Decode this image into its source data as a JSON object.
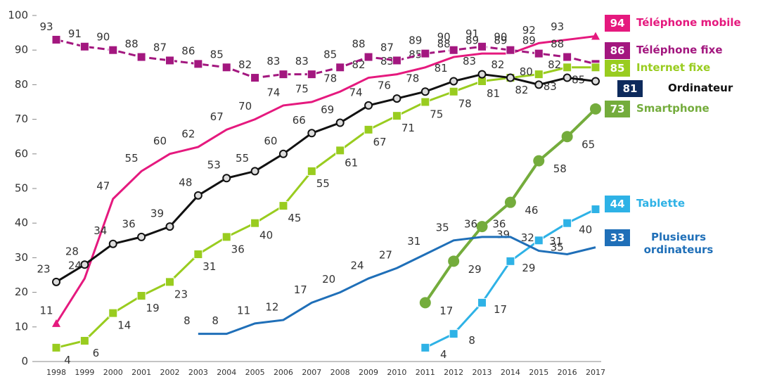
{
  "chart_data": {
    "type": "line",
    "x": [
      "1998",
      "1999",
      "2000",
      "2001",
      "2002",
      "2003",
      "2004",
      "2005",
      "2006",
      "2007",
      "2008",
      "2009",
      "2010",
      "2011",
      "2012",
      "2013",
      "2014",
      "2015",
      "2016",
      "2017"
    ],
    "ylim": [
      0,
      100
    ],
    "yticks": [
      0,
      10,
      20,
      30,
      40,
      50,
      60,
      70,
      80,
      90,
      100
    ],
    "series": [
      {
        "name": "Téléphone mobile",
        "color": "#e5197e",
        "marker": "triangle",
        "values": [
          11,
          24,
          47,
          55,
          60,
          62,
          67,
          70,
          74,
          75,
          78,
          82,
          83,
          85,
          88,
          89,
          89,
          92,
          93,
          94
        ]
      },
      {
        "name": "Téléphone fixe",
        "color": "#a3177f",
        "marker": "square",
        "dashed": true,
        "values": [
          93,
          91,
          90,
          88,
          87,
          86,
          85,
          82,
          83,
          83,
          85,
          88,
          87,
          89,
          90,
          91,
          90,
          89,
          88,
          86
        ]
      },
      {
        "name": "Internet fixe",
        "color": "#99cc1f",
        "marker": "square",
        "values": [
          4,
          6,
          14,
          19,
          23,
          31,
          36,
          40,
          45,
          55,
          61,
          67,
          71,
          75,
          78,
          81,
          82,
          83,
          85,
          85
        ]
      },
      {
        "name": "Ordinateur",
        "color": "#111111",
        "marker": "circle",
        "values": [
          23,
          28,
          34,
          36,
          39,
          48,
          53,
          55,
          60,
          66,
          69,
          74,
          76,
          78,
          81,
          83,
          82,
          80,
          82,
          81
        ]
      },
      {
        "name": "Smartphone",
        "color": "#74ac3c",
        "marker": "bigcircle",
        "values": [
          null,
          null,
          null,
          null,
          null,
          null,
          null,
          null,
          null,
          null,
          null,
          null,
          null,
          17,
          29,
          39,
          46,
          58,
          65,
          73
        ]
      },
      {
        "name": "Tablette",
        "color": "#2eb2e6",
        "marker": "square",
        "values": [
          null,
          null,
          null,
          null,
          null,
          null,
          null,
          null,
          null,
          null,
          null,
          null,
          null,
          4,
          8,
          17,
          29,
          35,
          40,
          44
        ]
      },
      {
        "name": "Plusieurs ordinateurs",
        "color": "#1f6fb8",
        "marker": "none",
        "values": [
          null,
          null,
          null,
          null,
          null,
          8,
          8,
          11,
          12,
          17,
          20,
          24,
          27,
          31,
          35,
          36,
          36,
          32,
          31,
          33
        ]
      }
    ]
  }
}
